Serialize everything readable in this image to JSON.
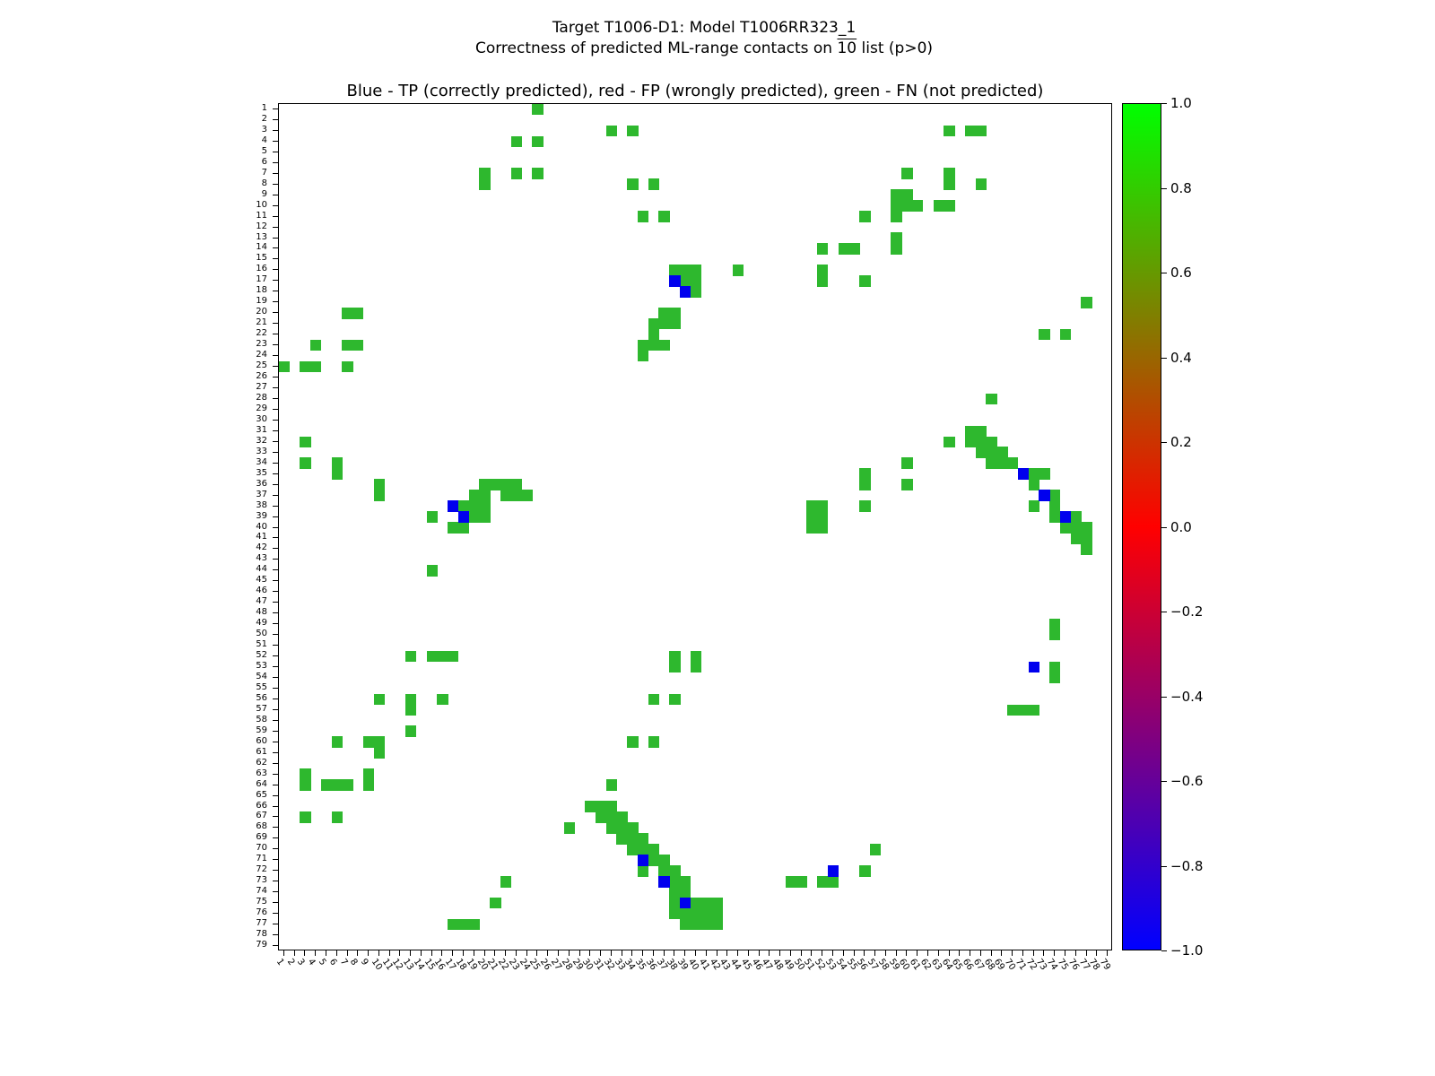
{
  "figure": {
    "title_line1": "Target T1006-D1: Model T1006RR323_1",
    "subtitle_prefix": "Correctness of predicted ML-range contacts on ",
    "subtitle_overline": "10",
    "subtitle_suffix": " list (p>0)",
    "axes_title": "Blue - TP (correctly predicted), red - FP (wrongly predicted), green - FN (not predicted)"
  },
  "chart_data": {
    "type": "heatmap",
    "subtype": "contact-map",
    "n": 79,
    "grid": false,
    "tick_labels": [
      1,
      2,
      3,
      4,
      5,
      6,
      7,
      8,
      9,
      10,
      11,
      12,
      13,
      14,
      15,
      16,
      17,
      18,
      19,
      20,
      21,
      22,
      23,
      24,
      25,
      26,
      27,
      28,
      29,
      30,
      31,
      32,
      33,
      34,
      35,
      36,
      37,
      38,
      39,
      40,
      41,
      42,
      43,
      44,
      45,
      46,
      47,
      48,
      49,
      50,
      51,
      52,
      53,
      54,
      55,
      56,
      57,
      58,
      59,
      60,
      61,
      62,
      63,
      64,
      65,
      66,
      67,
      68,
      69,
      70,
      71,
      72,
      73,
      74,
      75,
      76,
      77,
      78,
      79
    ],
    "legend": {
      "TP": {
        "label": "correctly predicted",
        "color": "#0000ee"
      },
      "FP": {
        "label": "wrongly predicted",
        "color": "#ff0000"
      },
      "FN": {
        "label": "not predicted",
        "color": "#2eb82e"
      }
    },
    "colorbar": {
      "min": -1.0,
      "max": 1.0,
      "tick_labels": [
        "1.0",
        "0.8",
        "0.6",
        "0.4",
        "0.2",
        "0.0",
        "−0.2",
        "−0.4",
        "−0.6",
        "−0.8",
        "−1.0"
      ],
      "gradient_stops": [
        "#00ff00",
        "#ff0000",
        "#0000ff"
      ]
    },
    "fn_cells": [
      [
        1,
        25
      ],
      [
        3,
        32
      ],
      [
        3,
        34
      ],
      [
        3,
        64
      ],
      [
        3,
        66
      ],
      [
        3,
        67
      ],
      [
        4,
        23
      ],
      [
        4,
        25
      ],
      [
        7,
        20
      ],
      [
        7,
        23
      ],
      [
        7,
        25
      ],
      [
        7,
        60
      ],
      [
        7,
        64
      ],
      [
        8,
        20
      ],
      [
        8,
        34
      ],
      [
        8,
        36
      ],
      [
        8,
        64
      ],
      [
        8,
        67
      ],
      [
        9,
        59
      ],
      [
        9,
        60
      ],
      [
        10,
        59
      ],
      [
        10,
        60
      ],
      [
        10,
        61
      ],
      [
        10,
        63
      ],
      [
        10,
        64
      ],
      [
        11,
        35
      ],
      [
        11,
        37
      ],
      [
        11,
        56
      ],
      [
        11,
        59
      ],
      [
        13,
        59
      ],
      [
        14,
        52
      ],
      [
        14,
        54
      ],
      [
        14,
        55
      ],
      [
        14,
        59
      ],
      [
        16,
        38
      ],
      [
        16,
        39
      ],
      [
        16,
        40
      ],
      [
        16,
        44
      ],
      [
        16,
        52
      ],
      [
        17,
        39
      ],
      [
        17,
        40
      ],
      [
        17,
        52
      ],
      [
        17,
        56
      ],
      [
        18,
        40
      ],
      [
        19,
        77
      ],
      [
        20,
        7
      ],
      [
        20,
        8
      ],
      [
        20,
        37
      ],
      [
        20,
        38
      ],
      [
        21,
        36
      ],
      [
        21,
        37
      ],
      [
        21,
        38
      ],
      [
        22,
        36
      ],
      [
        22,
        73
      ],
      [
        22,
        75
      ],
      [
        23,
        4
      ],
      [
        23,
        7
      ],
      [
        23,
        8
      ],
      [
        23,
        35
      ],
      [
        23,
        36
      ],
      [
        23,
        37
      ],
      [
        24,
        35
      ],
      [
        25,
        1
      ],
      [
        25,
        3
      ],
      [
        25,
        4
      ],
      [
        25,
        7
      ],
      [
        28,
        68
      ],
      [
        31,
        66
      ],
      [
        31,
        67
      ],
      [
        32,
        3
      ],
      [
        32,
        64
      ],
      [
        32,
        66
      ],
      [
        32,
        67
      ],
      [
        32,
        68
      ],
      [
        33,
        67
      ],
      [
        33,
        68
      ],
      [
        33,
        69
      ],
      [
        34,
        3
      ],
      [
        34,
        6
      ],
      [
        34,
        60
      ],
      [
        34,
        68
      ],
      [
        34,
        69
      ],
      [
        34,
        70
      ],
      [
        35,
        6
      ],
      [
        35,
        56
      ],
      [
        35,
        72
      ],
      [
        35,
        73
      ],
      [
        36,
        10
      ],
      [
        36,
        20
      ],
      [
        36,
        21
      ],
      [
        36,
        22
      ],
      [
        36,
        23
      ],
      [
        36,
        56
      ],
      [
        36,
        60
      ],
      [
        36,
        72
      ],
      [
        37,
        10
      ],
      [
        37,
        19
      ],
      [
        37,
        20
      ],
      [
        37,
        22
      ],
      [
        37,
        23
      ],
      [
        37,
        24
      ],
      [
        37,
        74
      ],
      [
        38,
        18
      ],
      [
        38,
        19
      ],
      [
        38,
        20
      ],
      [
        38,
        51
      ],
      [
        38,
        52
      ],
      [
        38,
        56
      ],
      [
        38,
        72
      ],
      [
        38,
        74
      ],
      [
        39,
        15
      ],
      [
        39,
        19
      ],
      [
        39,
        20
      ],
      [
        39,
        51
      ],
      [
        39,
        52
      ],
      [
        39,
        74
      ],
      [
        39,
        76
      ],
      [
        40,
        17
      ],
      [
        40,
        18
      ],
      [
        40,
        51
      ],
      [
        40,
        52
      ],
      [
        40,
        75
      ],
      [
        40,
        76
      ],
      [
        40,
        77
      ],
      [
        41,
        76
      ],
      [
        41,
        77
      ],
      [
        42,
        77
      ],
      [
        44,
        15
      ],
      [
        49,
        74
      ],
      [
        50,
        74
      ],
      [
        52,
        13
      ],
      [
        52,
        15
      ],
      [
        52,
        16
      ],
      [
        52,
        17
      ],
      [
        52,
        38
      ],
      [
        52,
        40
      ],
      [
        53,
        38
      ],
      [
        53,
        40
      ],
      [
        53,
        74
      ],
      [
        54,
        74
      ],
      [
        56,
        10
      ],
      [
        56,
        13
      ],
      [
        56,
        16
      ],
      [
        56,
        36
      ],
      [
        56,
        38
      ],
      [
        57,
        13
      ],
      [
        57,
        70
      ],
      [
        57,
        71
      ],
      [
        57,
        72
      ],
      [
        59,
        13
      ],
      [
        60,
        6
      ],
      [
        60,
        9
      ],
      [
        60,
        10
      ],
      [
        60,
        34
      ],
      [
        60,
        36
      ],
      [
        61,
        10
      ],
      [
        63,
        3
      ],
      [
        63,
        9
      ],
      [
        64,
        3
      ],
      [
        64,
        5
      ],
      [
        64,
        6
      ],
      [
        64,
        7
      ],
      [
        64,
        9
      ],
      [
        64,
        32
      ],
      [
        66,
        30
      ],
      [
        66,
        31
      ],
      [
        66,
        32
      ],
      [
        67,
        3
      ],
      [
        67,
        6
      ],
      [
        67,
        31
      ],
      [
        67,
        32
      ],
      [
        67,
        33
      ],
      [
        68,
        28
      ],
      [
        68,
        32
      ],
      [
        68,
        33
      ],
      [
        68,
        34
      ],
      [
        69,
        33
      ],
      [
        69,
        34
      ],
      [
        69,
        35
      ],
      [
        70,
        34
      ],
      [
        70,
        35
      ],
      [
        70,
        36
      ],
      [
        70,
        57
      ],
      [
        71,
        36
      ],
      [
        71,
        37
      ],
      [
        72,
        35
      ],
      [
        72,
        37
      ],
      [
        72,
        38
      ],
      [
        72,
        56
      ],
      [
        73,
        22
      ],
      [
        73,
        38
      ],
      [
        73,
        39
      ],
      [
        73,
        49
      ],
      [
        73,
        50
      ],
      [
        73,
        52
      ],
      [
        73,
        53
      ],
      [
        74,
        38
      ],
      [
        74,
        39
      ],
      [
        75,
        21
      ],
      [
        75,
        38
      ],
      [
        75,
        40
      ],
      [
        75,
        41
      ],
      [
        75,
        42
      ],
      [
        76,
        38
      ],
      [
        76,
        39
      ],
      [
        76,
        40
      ],
      [
        76,
        41
      ],
      [
        76,
        42
      ],
      [
        77,
        17
      ],
      [
        77,
        18
      ],
      [
        77,
        19
      ],
      [
        77,
        39
      ],
      [
        77,
        40
      ],
      [
        77,
        41
      ],
      [
        77,
        42
      ]
    ],
    "tp_cells": [
      [
        17,
        38
      ],
      [
        18,
        39
      ],
      [
        35,
        71
      ],
      [
        37,
        73
      ],
      [
        39,
        75
      ],
      [
        53,
        72
      ],
      [
        38,
        17
      ],
      [
        39,
        18
      ],
      [
        71,
        35
      ],
      [
        73,
        37
      ],
      [
        75,
        39
      ],
      [
        72,
        53
      ]
    ],
    "fp_cells": []
  }
}
